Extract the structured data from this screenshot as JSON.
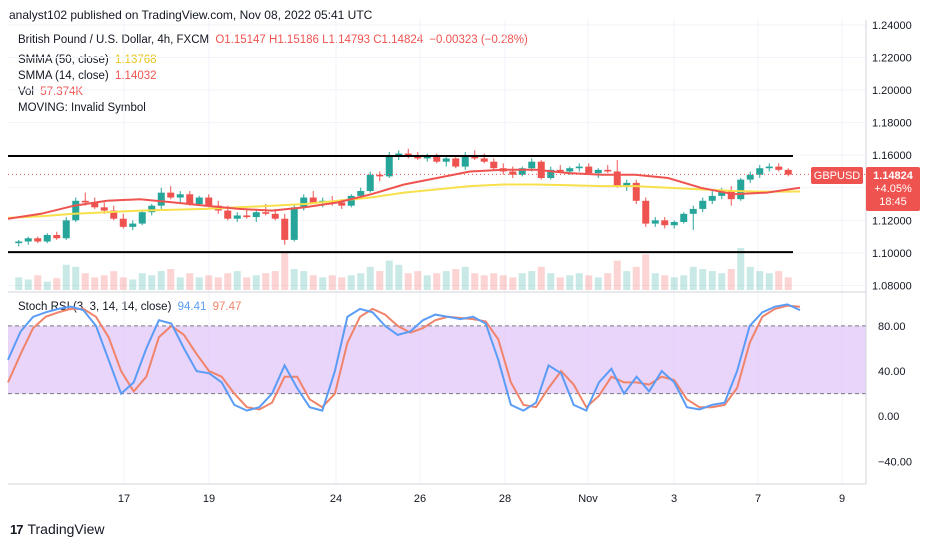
{
  "header": {
    "caption": "analyst102 published on TradingView.com, Nov 08, 2022 05:41 UTC"
  },
  "legend": {
    "symbol": "British Pound / U.S. Dollar, 4h, FXCM",
    "ohlc": "O1.15147 H1.15186 L1.14793 C1.14824",
    "change": "−0.00323 (−0.28%)",
    "sma50_label": "SMMA (50, close)",
    "sma50_value": "1.13768",
    "sma14_label": "SMMA (14, close)",
    "sma14_value": "1.14032",
    "vol_label": "Vol",
    "vol_value": "57.374K",
    "moving": "MOVING: Invalid Symbol"
  },
  "stoch": {
    "label": "Stoch RSI (3, 3, 14, 14, close)",
    "k_value": "94.41",
    "d_value": "97.47"
  },
  "price_badge": {
    "symbol": "GBPUSD",
    "price": "1.14824",
    "change": "+4.05%",
    "countdown": "18:45"
  },
  "colors": {
    "up": "#26a69a",
    "down": "#ef5350",
    "sma14": "#ef5350",
    "sma50": "#f7e04b",
    "k": "#5b9cf6",
    "d": "#f0846b",
    "band": "#e1c5f8"
  },
  "footer": {
    "brand": "TradingView"
  },
  "chart_data": [
    {
      "type": "candlestick",
      "title": "British Pound / U.S. Dollar, 4h, FXCM",
      "x_ticks": [
        "17",
        "19",
        "24",
        "26",
        "28",
        "Nov",
        "3",
        "7",
        "9"
      ],
      "y_ticks": [
        "1.24000",
        "1.22000",
        "1.20000",
        "1.18000",
        "1.16000",
        "1.14000",
        "1.12000",
        "1.10000",
        "1.08000"
      ],
      "ylim": [
        1.076,
        1.243
      ],
      "resistance": 1.1595,
      "support": 1.1005,
      "last_price": 1.14824,
      "sma14": [
        1.121,
        1.124,
        1.129,
        1.132,
        1.133,
        1.131,
        1.129,
        1.127,
        1.126,
        1.128,
        1.131,
        1.136,
        1.142,
        1.146,
        1.15,
        1.151,
        1.151,
        1.149,
        1.148,
        1.148,
        1.146,
        1.14,
        1.136,
        1.137,
        1.14
      ],
      "sma50": [
        1.1215,
        1.1225,
        1.124,
        1.125,
        1.126,
        1.1265,
        1.127,
        1.128,
        1.129,
        1.13,
        1.132,
        1.134,
        1.137,
        1.139,
        1.141,
        1.142,
        1.142,
        1.1415,
        1.141,
        1.141,
        1.14,
        1.139,
        1.138,
        1.1375,
        1.1377
      ],
      "candles": [
        [
          1.106,
          1.108,
          1.104,
          1.107
        ],
        [
          1.107,
          1.11,
          1.105,
          1.109
        ],
        [
          1.109,
          1.11,
          1.106,
          1.107
        ],
        [
          1.107,
          1.112,
          1.106,
          1.111
        ],
        [
          1.111,
          1.113,
          1.108,
          1.109
        ],
        [
          1.109,
          1.122,
          1.108,
          1.12
        ],
        [
          1.12,
          1.134,
          1.119,
          1.132
        ],
        [
          1.132,
          1.137,
          1.129,
          1.131
        ],
        [
          1.131,
          1.134,
          1.127,
          1.128
        ],
        [
          1.128,
          1.131,
          1.124,
          1.126
        ],
        [
          1.126,
          1.129,
          1.12,
          1.121
        ],
        [
          1.121,
          1.124,
          1.115,
          1.116
        ],
        [
          1.116,
          1.12,
          1.114,
          1.118
        ],
        [
          1.118,
          1.126,
          1.117,
          1.125
        ],
        [
          1.125,
          1.13,
          1.123,
          1.129
        ],
        [
          1.129,
          1.14,
          1.127,
          1.137
        ],
        [
          1.137,
          1.141,
          1.133,
          1.134
        ],
        [
          1.134,
          1.138,
          1.131,
          1.136
        ],
        [
          1.136,
          1.138,
          1.129,
          1.13
        ],
        [
          1.13,
          1.135,
          1.129,
          1.134
        ],
        [
          1.134,
          1.136,
          1.128,
          1.129
        ],
        [
          1.129,
          1.132,
          1.124,
          1.126
        ],
        [
          1.126,
          1.129,
          1.12,
          1.121
        ],
        [
          1.121,
          1.125,
          1.119,
          1.123
        ],
        [
          1.123,
          1.127,
          1.121,
          1.122
        ],
        [
          1.122,
          1.126,
          1.119,
          1.125
        ],
        [
          1.125,
          1.13,
          1.123,
          1.124
        ],
        [
          1.124,
          1.127,
          1.12,
          1.121
        ],
        [
          1.121,
          1.124,
          1.105,
          1.108
        ],
        [
          1.108,
          1.13,
          1.107,
          1.128
        ],
        [
          1.128,
          1.136,
          1.126,
          1.134
        ],
        [
          1.134,
          1.138,
          1.13,
          1.131
        ],
        [
          1.131,
          1.134,
          1.128,
          1.132
        ],
        [
          1.132,
          1.135,
          1.129,
          1.131
        ],
        [
          1.131,
          1.133,
          1.127,
          1.129
        ],
        [
          1.129,
          1.136,
          1.128,
          1.135
        ],
        [
          1.135,
          1.14,
          1.133,
          1.138
        ],
        [
          1.138,
          1.15,
          1.137,
          1.148
        ],
        [
          1.148,
          1.15,
          1.144,
          1.147
        ],
        [
          1.147,
          1.162,
          1.146,
          1.16
        ],
        [
          1.16,
          1.163,
          1.157,
          1.161
        ],
        [
          1.161,
          1.164,
          1.158,
          1.16
        ],
        [
          1.16,
          1.162,
          1.157,
          1.158
        ],
        [
          1.158,
          1.161,
          1.156,
          1.159
        ],
        [
          1.159,
          1.161,
          1.155,
          1.156
        ],
        [
          1.156,
          1.159,
          1.153,
          1.158
        ],
        [
          1.158,
          1.16,
          1.152,
          1.153
        ],
        [
          1.153,
          1.162,
          1.151,
          1.16
        ],
        [
          1.16,
          1.163,
          1.157,
          1.158
        ],
        [
          1.158,
          1.161,
          1.155,
          1.156
        ],
        [
          1.156,
          1.158,
          1.151,
          1.152
        ],
        [
          1.152,
          1.155,
          1.148,
          1.15
        ],
        [
          1.15,
          1.153,
          1.146,
          1.148
        ],
        [
          1.148,
          1.153,
          1.147,
          1.152
        ],
        [
          1.152,
          1.158,
          1.15,
          1.156
        ],
        [
          1.156,
          1.157,
          1.145,
          1.146
        ],
        [
          1.146,
          1.153,
          1.145,
          1.151
        ],
        [
          1.151,
          1.154,
          1.149,
          1.15
        ],
        [
          1.15,
          1.153,
          1.148,
          1.152
        ],
        [
          1.152,
          1.155,
          1.15,
          1.153
        ],
        [
          1.153,
          1.155,
          1.148,
          1.149
        ],
        [
          1.149,
          1.152,
          1.146,
          1.151
        ],
        [
          1.151,
          1.154,
          1.149,
          1.15
        ],
        [
          1.15,
          1.157,
          1.14,
          1.141
        ],
        [
          1.141,
          1.145,
          1.138,
          1.143
        ],
        [
          1.143,
          1.145,
          1.13,
          1.132
        ],
        [
          1.132,
          1.134,
          1.116,
          1.118
        ],
        [
          1.118,
          1.122,
          1.116,
          1.12
        ],
        [
          1.12,
          1.122,
          1.115,
          1.117
        ],
        [
          1.117,
          1.12,
          1.115,
          1.119
        ],
        [
          1.119,
          1.125,
          1.118,
          1.124
        ],
        [
          1.124,
          1.129,
          1.114,
          1.127
        ],
        [
          1.127,
          1.134,
          1.125,
          1.132
        ],
        [
          1.132,
          1.138,
          1.13,
          1.135
        ],
        [
          1.135,
          1.14,
          1.133,
          1.138
        ],
        [
          1.138,
          1.141,
          1.129,
          1.133
        ],
        [
          1.133,
          1.146,
          1.132,
          1.145
        ],
        [
          1.145,
          1.15,
          1.143,
          1.148
        ],
        [
          1.148,
          1.154,
          1.146,
          1.152
        ],
        [
          1.152,
          1.155,
          1.15,
          1.153
        ],
        [
          1.153,
          1.155,
          1.15,
          1.151
        ],
        [
          1.151,
          1.152,
          1.147,
          1.148
        ]
      ],
      "volume": [
        0.3,
        0.25,
        0.35,
        0.2,
        0.28,
        0.6,
        0.55,
        0.4,
        0.3,
        0.35,
        0.45,
        0.3,
        0.25,
        0.4,
        0.35,
        0.45,
        0.5,
        0.3,
        0.4,
        0.3,
        0.35,
        0.3,
        0.4,
        0.45,
        0.3,
        0.35,
        0.4,
        0.45,
        0.9,
        0.5,
        0.45,
        0.35,
        0.3,
        0.35,
        0.3,
        0.35,
        0.4,
        0.55,
        0.45,
        0.7,
        0.6,
        0.4,
        0.45,
        0.35,
        0.4,
        0.45,
        0.5,
        0.55,
        0.4,
        0.35,
        0.4,
        0.35,
        0.3,
        0.4,
        0.45,
        0.55,
        0.4,
        0.3,
        0.35,
        0.4,
        0.35,
        0.3,
        0.4,
        0.7,
        0.45,
        0.55,
        0.85,
        0.4,
        0.35,
        0.3,
        0.35,
        0.55,
        0.5,
        0.45,
        0.4,
        0.5,
        1.0,
        0.55,
        0.45,
        0.4,
        0.45,
        0.3
      ]
    },
    {
      "type": "line",
      "title": "Stoch RSI (3, 3, 14, 14, close)",
      "y_ticks": [
        "80.00",
        "40.00",
        "0.00",
        "−40.00"
      ],
      "ylim": [
        -60,
        110
      ],
      "bands": [
        20,
        80
      ],
      "series": [
        {
          "name": "K",
          "values": [
            50,
            75,
            88,
            92,
            95,
            97,
            94,
            80,
            50,
            20,
            30,
            60,
            85,
            82,
            60,
            40,
            38,
            30,
            10,
            5,
            8,
            20,
            45,
            25,
            8,
            5,
            40,
            88,
            95,
            92,
            80,
            72,
            75,
            85,
            90,
            88,
            86,
            88,
            82,
            50,
            10,
            5,
            12,
            45,
            38,
            10,
            5,
            30,
            42,
            20,
            35,
            22,
            40,
            30,
            8,
            6,
            10,
            12,
            40,
            80,
            92,
            97,
            99,
            94
          ]
        },
        {
          "name": "D",
          "values": [
            30,
            55,
            78,
            88,
            92,
            95,
            95,
            88,
            70,
            40,
            22,
            35,
            70,
            80,
            72,
            55,
            40,
            35,
            20,
            8,
            6,
            12,
            35,
            35,
            15,
            8,
            20,
            65,
            88,
            95,
            90,
            80,
            74,
            78,
            85,
            88,
            87,
            86,
            84,
            68,
            30,
            10,
            8,
            25,
            40,
            28,
            8,
            18,
            35,
            30,
            30,
            28,
            35,
            32,
            15,
            8,
            8,
            10,
            25,
            65,
            88,
            95,
            98,
            97
          ]
        }
      ]
    }
  ]
}
